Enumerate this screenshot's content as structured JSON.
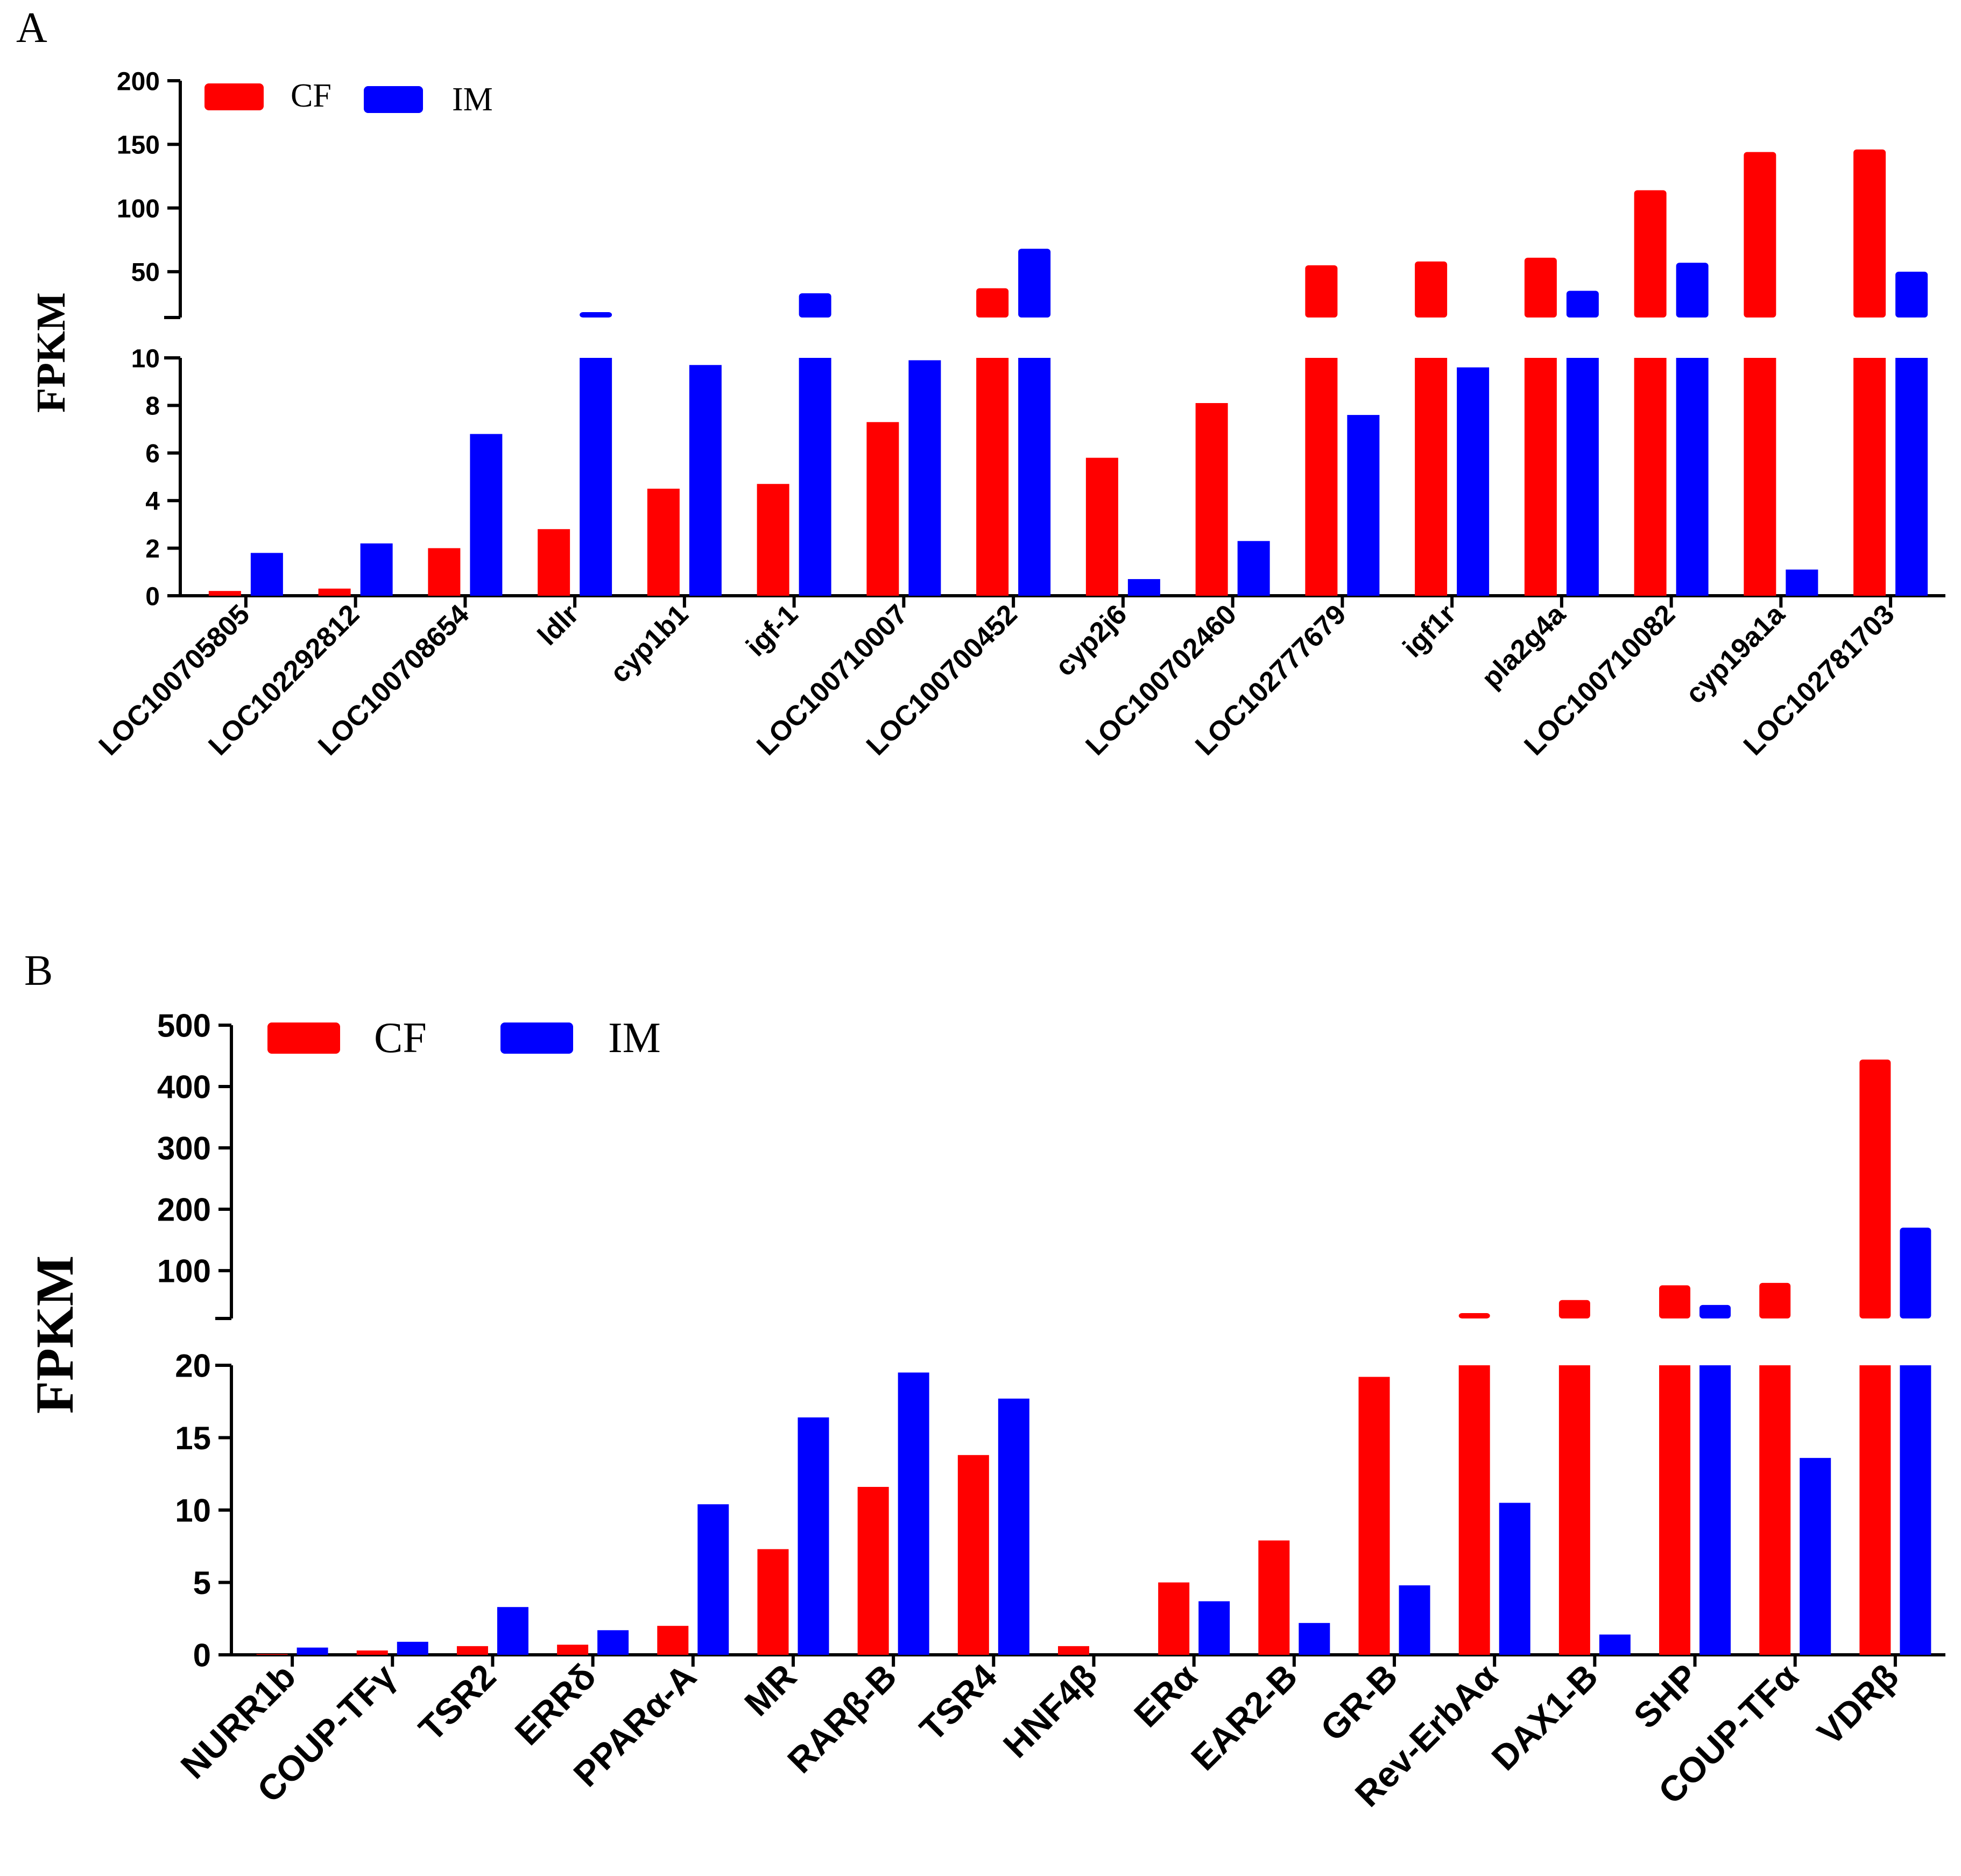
{
  "colors": {
    "CF": "#ff0000",
    "IM": "#0000ff"
  },
  "chart_data": [
    {
      "panel": "A",
      "type": "bar",
      "ylabel": "FPKM",
      "legend": [
        "CF",
        "IM"
      ],
      "legend_position": "top-left",
      "y_axis_break": {
        "lower_range": [
          0,
          10
        ],
        "upper_range": [
          14,
          200
        ]
      },
      "lower_ticks": [
        0,
        2,
        4,
        6,
        8,
        10
      ],
      "upper_ticks": [
        50,
        100,
        150,
        200
      ],
      "categories": [
        "LOC100705805",
        "LOC102292812",
        "LOC100708654",
        "ldlr",
        "cyp1b1",
        "igf-1",
        "LOC100710007",
        "LOC100700452",
        "cyp2j6",
        "LOC100702460",
        "LOC102777679",
        "igf1r",
        "pla2g4a",
        "LOC100710082",
        "cyp19a1a",
        "LOC102781703"
      ],
      "series": [
        {
          "name": "CF",
          "values": [
            0.2,
            0.3,
            2.0,
            2.8,
            4.5,
            4.7,
            7.3,
            37,
            5.8,
            8.1,
            55,
            58,
            61,
            114,
            144,
            146
          ]
        },
        {
          "name": "IM",
          "values": [
            1.8,
            2.2,
            6.8,
            15,
            9.7,
            33,
            9.9,
            68,
            0.7,
            2.3,
            7.6,
            9.6,
            35,
            57,
            1.1,
            50
          ]
        }
      ]
    },
    {
      "panel": "B",
      "type": "bar",
      "ylabel": "FPKM",
      "legend": [
        "CF",
        "IM"
      ],
      "legend_position": "top-left",
      "y_axis_break": {
        "lower_range": [
          0,
          20
        ],
        "upper_range": [
          22,
          500
        ]
      },
      "lower_ticks": [
        0,
        5,
        10,
        15,
        20
      ],
      "upper_ticks": [
        100,
        200,
        300,
        400,
        500
      ],
      "categories": [
        "NURR1b",
        "COUP-TFγ",
        "TSR2",
        "ERRδ",
        "PPARα-A",
        "MR",
        "RARβ-B",
        "TSR4",
        "HNF4β",
        "ERα",
        "EAR2-B",
        "GR-B",
        "Rev-ErbAα",
        "DAX1-B",
        "SHP",
        "COUP-TFα",
        "VDRβ"
      ],
      "series": [
        {
          "name": "CF",
          "values": [
            0.05,
            0.3,
            0.6,
            0.7,
            2.0,
            7.3,
            11.6,
            13.8,
            0.6,
            5.0,
            7.9,
            19.2,
            30,
            52,
            76,
            80,
            444
          ]
        },
        {
          "name": "IM",
          "values": [
            0.5,
            0.9,
            3.3,
            1.7,
            10.4,
            16.4,
            19.5,
            17.7,
            0.0,
            3.7,
            2.2,
            4.8,
            10.5,
            1.4,
            44,
            13.6,
            170
          ]
        }
      ]
    }
  ]
}
